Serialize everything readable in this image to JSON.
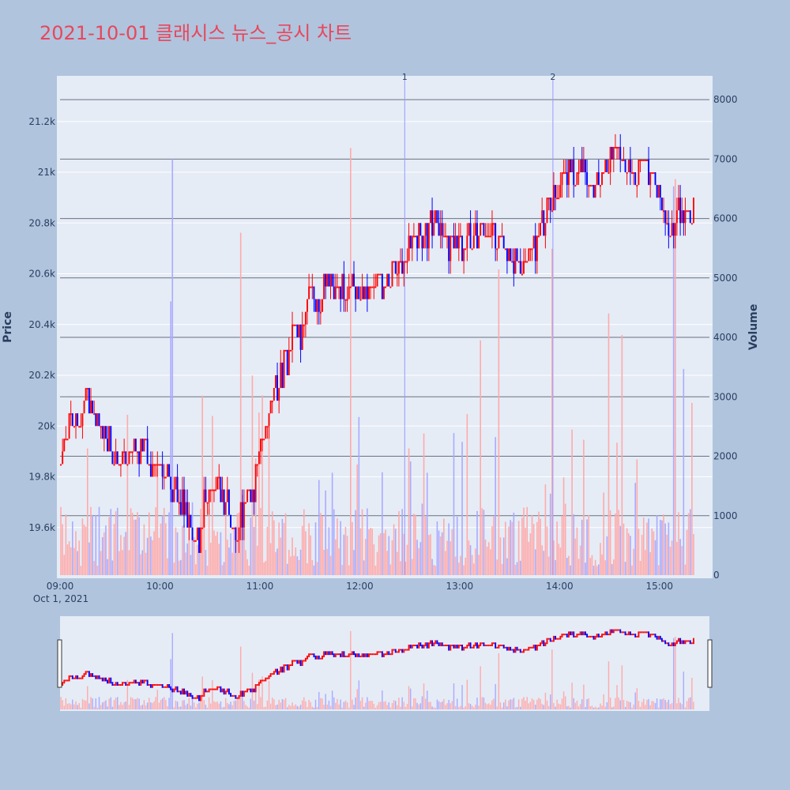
{
  "title": "2021-10-01 클래시스 뉴스_공시 차트",
  "colors": {
    "up": "#ff0000",
    "down": "#0000ff",
    "volume_up": "#ffaaaa",
    "volume_down": "#aaaaff",
    "plot_bg": "#e5ecf6",
    "page_bg": "#b0c4de",
    "title": "#e8475b"
  },
  "chart_data": {
    "type": "candlestick",
    "y_title": "Price",
    "y2_title": "Volume",
    "y_ticks": [
      "19.6k",
      "19.8k",
      "20k",
      "20.2k",
      "20.4k",
      "20.6k",
      "20.8k",
      "21k",
      "21.2k"
    ],
    "y_tick_values": [
      19600,
      19800,
      20000,
      20200,
      20400,
      20600,
      20800,
      21000,
      21200
    ],
    "y2_ticks": [
      "0",
      "1000",
      "2000",
      "3000",
      "4000",
      "5000",
      "6000",
      "7000",
      "8000"
    ],
    "y2_tick_values": [
      0,
      1000,
      2000,
      3000,
      4000,
      5000,
      6000,
      7000,
      8000
    ],
    "x_ticks": [
      "09:00",
      "10:00",
      "11:00",
      "12:00",
      "13:00",
      "14:00",
      "15:00"
    ],
    "x_date_label": "Oct 1, 2021",
    "ylim": [
      19400,
      21380
    ],
    "y2lim": [
      0,
      8400
    ],
    "x_range": [
      "09:00",
      "15:30"
    ],
    "annotations": [
      {
        "label": "1",
        "time": "12:27"
      },
      {
        "label": "2",
        "time": "13:56"
      }
    ],
    "price_waypoints": [
      [
        "09:00",
        19850
      ],
      [
        "09:05",
        20050
      ],
      [
        "09:10",
        19980
      ],
      [
        "09:15",
        20150
      ],
      [
        "09:20",
        20050
      ],
      [
        "09:25",
        19950
      ],
      [
        "09:30",
        19920
      ],
      [
        "09:40",
        19880
      ],
      [
        "09:50",
        19920
      ],
      [
        "09:55",
        19850
      ],
      [
        "10:05",
        19800
      ],
      [
        "10:12",
        19720
      ],
      [
        "10:18",
        19620
      ],
      [
        "10:23",
        19550
      ],
      [
        "10:28",
        19750
      ],
      [
        "10:33",
        19780
      ],
      [
        "10:40",
        19700
      ],
      [
        "10:45",
        19580
      ],
      [
        "10:50",
        19680
      ],
      [
        "10:55",
        19720
      ],
      [
        "11:00",
        19900
      ],
      [
        "11:05",
        20050
      ],
      [
        "11:10",
        20150
      ],
      [
        "11:15",
        20250
      ],
      [
        "11:20",
        20400
      ],
      [
        "11:25",
        20350
      ],
      [
        "11:30",
        20550
      ],
      [
        "11:35",
        20500
      ],
      [
        "11:40",
        20580
      ],
      [
        "11:50",
        20520
      ],
      [
        "12:00",
        20530
      ],
      [
        "12:10",
        20550
      ],
      [
        "12:20",
        20620
      ],
      [
        "12:30",
        20720
      ],
      [
        "12:40",
        20760
      ],
      [
        "12:45",
        20800
      ],
      [
        "12:50",
        20730
      ],
      [
        "13:00",
        20700
      ],
      [
        "13:05",
        20780
      ],
      [
        "13:10",
        20720
      ],
      [
        "13:20",
        20750
      ],
      [
        "13:25",
        20700
      ],
      [
        "13:30",
        20650
      ],
      [
        "13:35",
        20600
      ],
      [
        "13:45",
        20720
      ],
      [
        "13:50",
        20820
      ],
      [
        "13:55",
        20900
      ],
      [
        "14:00",
        20950
      ],
      [
        "14:05",
        21000
      ],
      [
        "14:10",
        20980
      ],
      [
        "14:15",
        21020
      ],
      [
        "14:20",
        20950
      ],
      [
        "14:25",
        20980
      ],
      [
        "14:30",
        21050
      ],
      [
        "14:35",
        21080
      ],
      [
        "14:40",
        21020
      ],
      [
        "14:45",
        20980
      ],
      [
        "14:50",
        21040
      ],
      [
        "14:55",
        21000
      ],
      [
        "15:00",
        20900
      ],
      [
        "15:05",
        20750
      ],
      [
        "15:10",
        20850
      ],
      [
        "15:15",
        20800
      ],
      [
        "15:20",
        20870
      ]
    ]
  }
}
